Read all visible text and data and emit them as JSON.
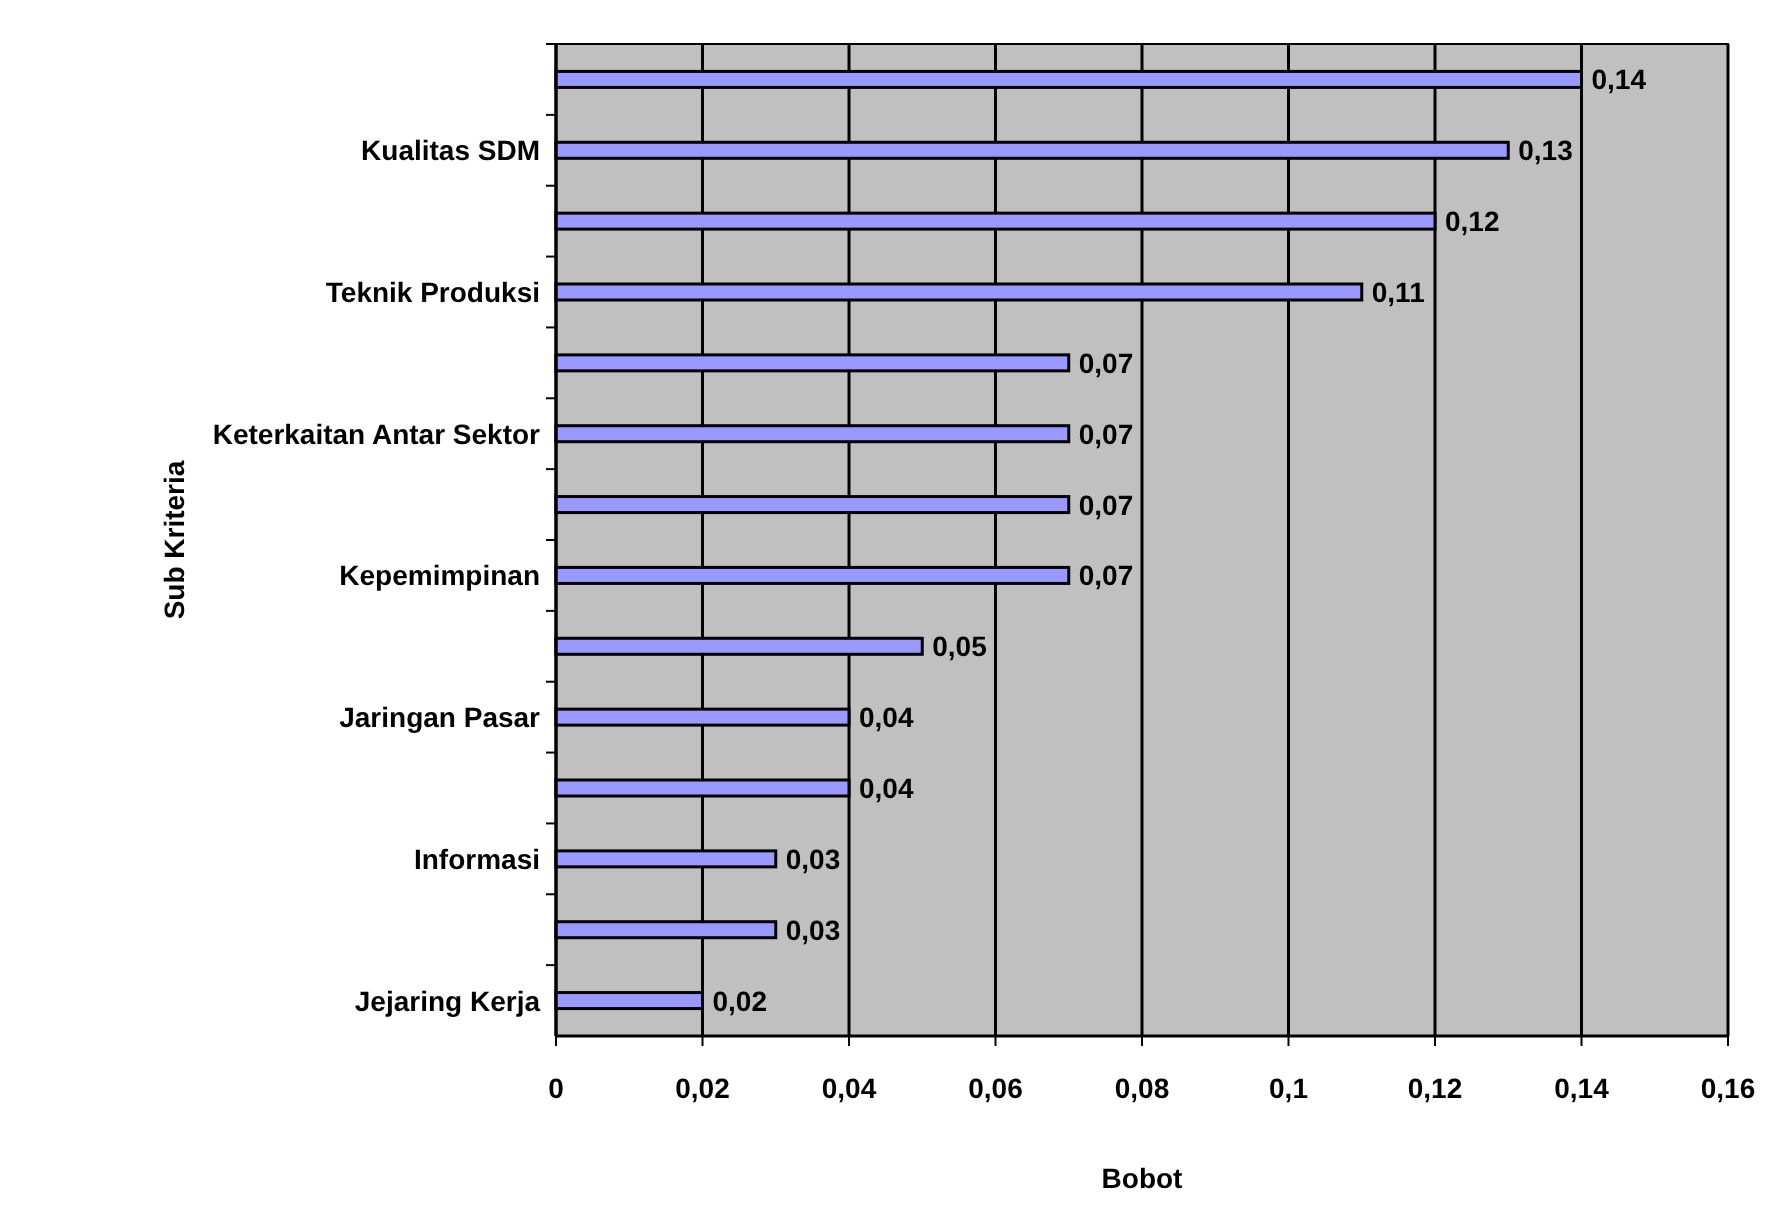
{
  "chart_data": {
    "type": "bar",
    "orientation": "horizontal",
    "xlabel": "Bobot",
    "ylabel": "Sub Kriteria",
    "categories": [
      null,
      "Kualitas SDM",
      null,
      "Teknik Produksi",
      null,
      "Keterkaitan Antar Sektor",
      null,
      "Kepemimpinan",
      null,
      "Jaringan Pasar",
      null,
      "Informasi",
      null,
      "Jejaring Kerja"
    ],
    "values": [
      0.14,
      0.13,
      0.12,
      0.11,
      0.07,
      0.07,
      0.07,
      0.07,
      0.05,
      0.04,
      0.04,
      0.03,
      0.03,
      0.02
    ],
    "value_labels": [
      "0,14",
      "0,13",
      "0,12",
      "0,11",
      "0,07",
      "0,07",
      "0,07",
      "0,07",
      "0,05",
      "0,04",
      "0,04",
      "0,03",
      "0,03",
      "0,02"
    ],
    "color": "#9999ff",
    "xlim": [
      0,
      0.16
    ],
    "xticks": [
      0,
      {
        "value": 0.02,
        "label": "0,02"
      },
      {
        "value": 0.04,
        "label": "0,04"
      },
      {
        "value": 0.06,
        "label": "0,06"
      },
      {
        "value": 0.08,
        "label": "0,08"
      },
      {
        "value": 0.1,
        "label": "0,1"
      },
      {
        "value": 0.12,
        "label": "0,12"
      },
      {
        "value": 0.14,
        "label": "0,14"
      },
      {
        "value": 0.16,
        "label": "0,16"
      }
    ],
    "grid": "x"
  }
}
